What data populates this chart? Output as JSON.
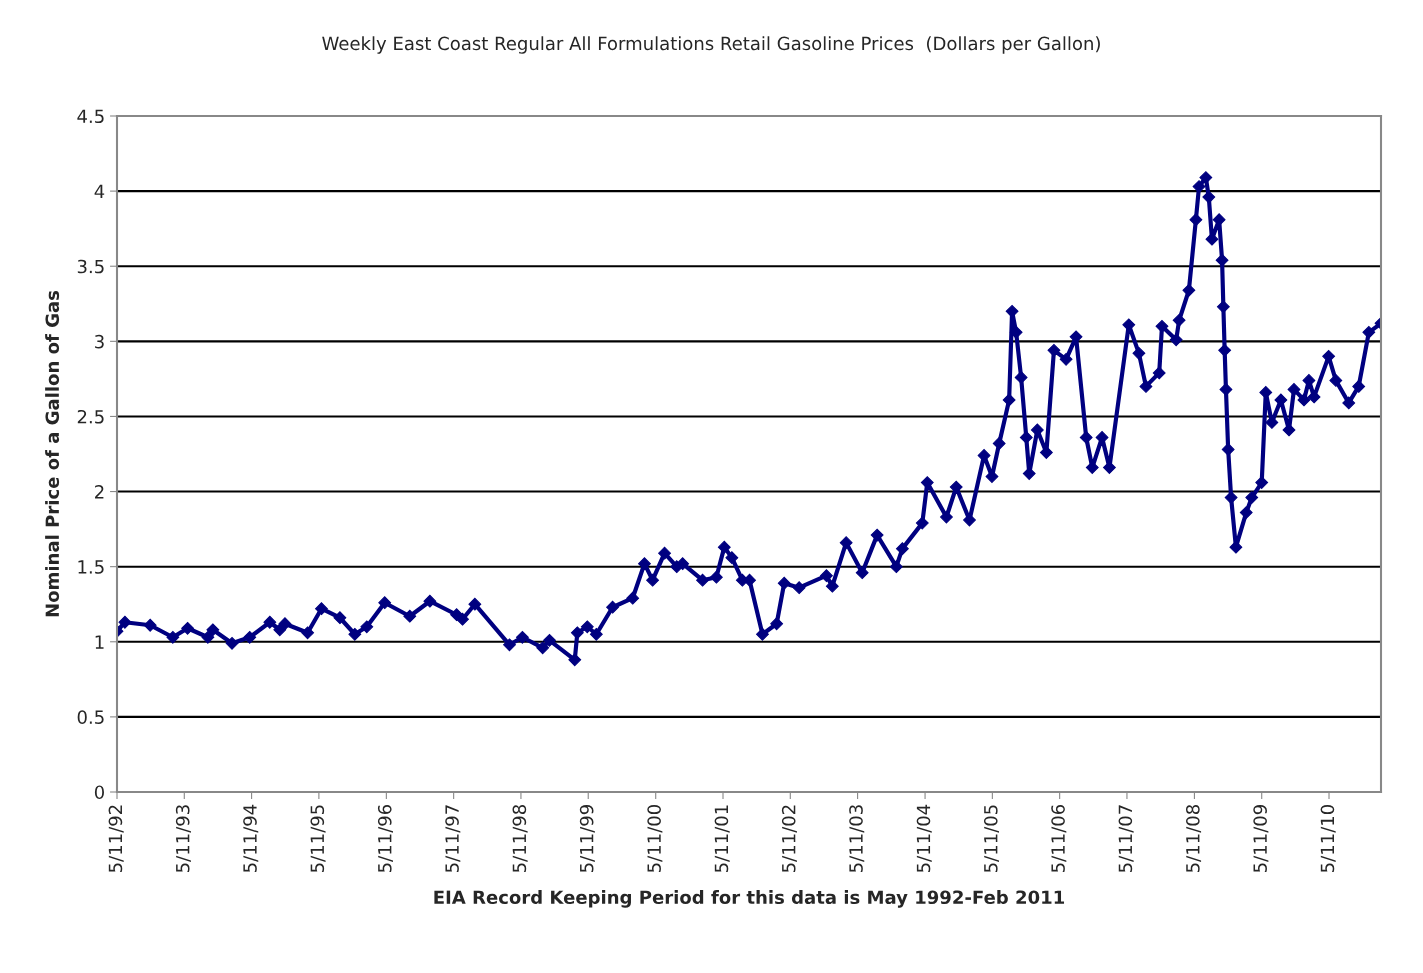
{
  "chart_data": {
    "type": "line",
    "title": "Weekly East Coast Regular All Formulations Retail Gasoline Prices  (Dollars per Gallon)",
    "xlabel": "EIA Record Keeping Period for this data is May 1992-Feb 2011",
    "ylabel": "Nominal Price of a Gallon of Gas",
    "x": [
      "1992-05-11",
      "1992-06-23",
      "1992-11-07",
      "1993-03-10",
      "1993-05-29",
      "1993-09-16",
      "1993-10-13",
      "1994-01-25",
      "1994-05-01",
      "1994-08-18",
      "1994-10-11",
      "1994-11-08",
      "1995-03-11",
      "1995-05-25",
      "1995-09-02",
      "1995-11-22",
      "1996-01-26",
      "1996-05-02",
      "1996-09-15",
      "1997-01-02",
      "1997-05-27",
      "1997-06-28",
      "1997-09-03",
      "1998-03-10",
      "1998-05-19",
      "1998-09-06",
      "1998-10-13",
      "1999-02-27",
      "1999-03-13",
      "1999-05-06",
      "1999-06-24",
      "1999-09-20",
      "2000-01-07",
      "2000-03-11",
      "2000-04-24",
      "2000-06-28",
      "2000-09-02",
      "2000-10-04",
      "2001-01-20",
      "2001-04-05",
      "2001-05-18",
      "2001-06-28",
      "2001-08-24",
      "2001-10-02",
      "2001-12-11",
      "2002-02-26",
      "2002-04-08",
      "2002-06-28",
      "2002-11-23",
      "2002-12-25",
      "2003-03-10",
      "2003-06-05",
      "2003-08-25",
      "2003-12-07",
      "2004-01-09",
      "2004-04-26",
      "2004-05-23",
      "2004-09-04",
      "2004-10-27",
      "2005-01-07",
      "2005-03-27",
      "2005-05-09",
      "2005-06-17",
      "2005-08-10",
      "2005-08-26",
      "2005-09-17",
      "2005-10-14",
      "2005-11-11",
      "2005-11-27",
      "2006-01-10",
      "2006-02-28",
      "2006-04-10",
      "2006-06-15",
      "2006-08-08",
      "2006-10-02",
      "2006-11-04",
      "2006-12-27",
      "2007-02-05",
      "2007-05-21",
      "2007-07-15",
      "2007-08-22",
      "2007-11-02",
      "2007-11-17",
      "2008-02-02",
      "2008-02-18",
      "2008-04-11",
      "2008-05-19",
      "2008-06-05",
      "2008-07-12",
      "2008-07-28",
      "2008-08-14",
      "2008-09-22",
      "2008-10-08",
      "2008-10-15",
      "2008-10-22",
      "2008-10-29",
      "2008-11-10",
      "2008-11-26",
      "2008-12-22",
      "2009-02-16",
      "2009-03-18",
      "2009-05-11",
      "2009-06-02",
      "2009-07-05",
      "2009-08-23",
      "2009-10-06",
      "2009-11-02",
      "2009-12-26",
      "2010-01-22",
      "2010-02-19",
      "2010-05-09",
      "2010-06-17",
      "2010-08-26",
      "2010-10-19",
      "2010-12-13",
      "2011-02-17"
    ],
    "series": [
      {
        "color": "#000080",
        "values": [
          1.07,
          1.13,
          1.11,
          1.03,
          1.09,
          1.03,
          1.08,
          0.99,
          1.03,
          1.13,
          1.08,
          1.12,
          1.06,
          1.22,
          1.16,
          1.05,
          1.1,
          1.26,
          1.17,
          1.27,
          1.18,
          1.15,
          1.25,
          0.98,
          1.03,
          0.96,
          1.01,
          0.88,
          1.06,
          1.1,
          1.05,
          1.23,
          1.29,
          1.52,
          1.41,
          1.59,
          1.5,
          1.52,
          1.41,
          1.43,
          1.63,
          1.56,
          1.41,
          1.41,
          1.05,
          1.12,
          1.39,
          1.36,
          1.44,
          1.37,
          1.66,
          1.46,
          1.71,
          1.5,
          1.62,
          1.79,
          2.06,
          1.83,
          2.03,
          1.81,
          2.24,
          2.1,
          2.32,
          2.61,
          3.2,
          3.06,
          2.76,
          2.36,
          2.12,
          2.41,
          2.26,
          2.94,
          2.88,
          3.03,
          2.36,
          2.16,
          2.36,
          2.16,
          3.11,
          2.92,
          2.7,
          2.79,
          3.1,
          3.01,
          3.14,
          3.34,
          3.81,
          4.03,
          4.09,
          3.96,
          3.68,
          3.81,
          3.54,
          3.23,
          2.94,
          2.68,
          2.28,
          1.96,
          1.63,
          1.86,
          1.96,
          2.06,
          2.66,
          2.46,
          2.61,
          2.41,
          2.68,
          2.61,
          2.74,
          2.63,
          2.9,
          2.74,
          2.59,
          2.7,
          3.06,
          3.12
        ]
      }
    ],
    "xlim": [
      "1992-05-11",
      "2011-02-17"
    ],
    "xticks": [
      {
        "value": "1992-05-11",
        "label": "5/11/92"
      },
      {
        "value": "1993-05-11",
        "label": "5/11/93"
      },
      {
        "value": "1994-05-11",
        "label": "5/11/94"
      },
      {
        "value": "1995-05-11",
        "label": "5/11/95"
      },
      {
        "value": "1996-05-11",
        "label": "5/11/96"
      },
      {
        "value": "1997-05-11",
        "label": "5/11/97"
      },
      {
        "value": "1998-05-11",
        "label": "5/11/98"
      },
      {
        "value": "1999-05-11",
        "label": "5/11/99"
      },
      {
        "value": "2000-05-11",
        "label": "5/11/00"
      },
      {
        "value": "2001-05-11",
        "label": "5/11/01"
      },
      {
        "value": "2002-05-11",
        "label": "5/11/02"
      },
      {
        "value": "2003-05-11",
        "label": "5/11/03"
      },
      {
        "value": "2004-05-11",
        "label": "5/11/04"
      },
      {
        "value": "2005-05-11",
        "label": "5/11/05"
      },
      {
        "value": "2006-05-11",
        "label": "5/11/06"
      },
      {
        "value": "2007-05-11",
        "label": "5/11/07"
      },
      {
        "value": "2008-05-11",
        "label": "5/11/08"
      },
      {
        "value": "2009-05-11",
        "label": "5/11/09"
      },
      {
        "value": "2010-05-11",
        "label": "5/11/10"
      }
    ],
    "ylim": [
      0,
      4.5
    ],
    "yticks": [
      0,
      0.5,
      1,
      1.5,
      2,
      2.5,
      3,
      3.5,
      4,
      4.5
    ],
    "grid": "y",
    "marker": "diamond",
    "line_style": "solid"
  }
}
